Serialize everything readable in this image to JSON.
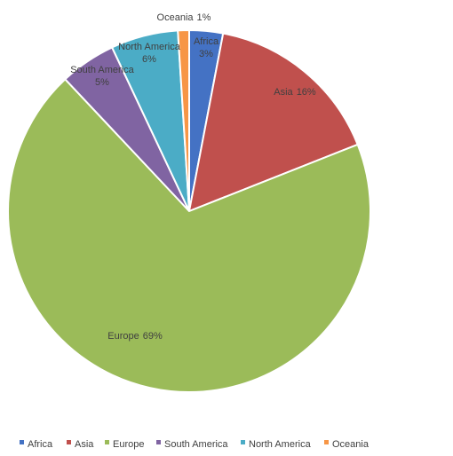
{
  "chart_data": {
    "type": "pie",
    "categories": [
      "Africa",
      "Asia",
      "Europe",
      "South America",
      "North America",
      "Oceania"
    ],
    "values": [
      3,
      16,
      69,
      5,
      6,
      1
    ],
    "value_labels": [
      "3%",
      "16%",
      "69%",
      "5%",
      "6%",
      "1%"
    ],
    "colors": [
      "#4472c4",
      "#c0504d",
      "#9bbb59",
      "#8064a2",
      "#4bacc6",
      "#f79646"
    ],
    "legend": "bottom"
  }
}
